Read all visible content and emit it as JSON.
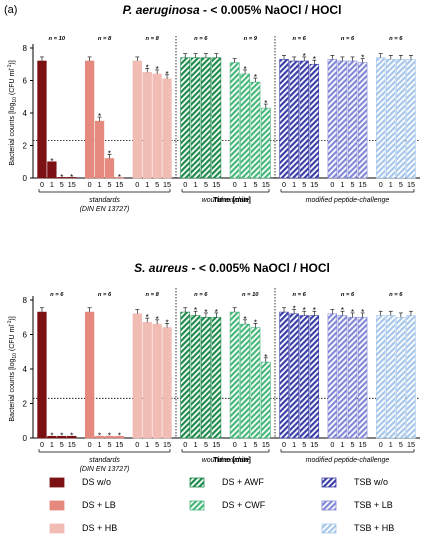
{
  "panel_label": "(a)",
  "chart_data": [
    {
      "type": "bar",
      "title": "P. aeruginosa - < 0.005% NaOCl / HOCl",
      "ylabel": "Bacterial counts [log10 (CFU ml-1)]",
      "xlabel": "Time [min]",
      "ylim": [
        0,
        8
      ],
      "yticks": [
        0,
        2,
        4,
        6,
        8
      ],
      "detection_limit": 2.3,
      "categories": [
        "0",
        "1",
        "5",
        "15"
      ],
      "groups": [
        {
          "name": "standards (DIN EN 13727)",
          "series": [
            {
              "name": "DS w/o",
              "n": "n = 10",
              "values": [
                7.2,
                1.0,
                0.0,
                0.0
              ],
              "sig": [
                "",
                "*",
                "*",
                "*"
              ]
            },
            {
              "name": "DS + LB",
              "n": "n = 8",
              "values": [
                7.2,
                3.5,
                1.2,
                0.0
              ],
              "sig": [
                "",
                "*",
                "*",
                "*"
              ]
            },
            {
              "name": "DS + HB",
              "n": "n = 8",
              "values": [
                7.2,
                6.5,
                6.4,
                6.1
              ],
              "sig": [
                "",
                "*",
                "*",
                "*"
              ]
            }
          ]
        },
        {
          "name": "wound exudate",
          "series": [
            {
              "name": "DS + AWF",
              "n": "n = 6",
              "values": [
                7.4,
                7.4,
                7.4,
                7.4
              ],
              "sig": [
                "",
                "",
                "",
                ""
              ]
            },
            {
              "name": "DS + CWF",
              "n": "n = 9",
              "values": [
                7.1,
                6.4,
                5.9,
                4.3
              ],
              "sig": [
                "",
                "*",
                "*",
                "*"
              ]
            }
          ]
        },
        {
          "name": "modified peptide-challenge",
          "series": [
            {
              "name": "TSB w/o",
              "n": "n = 6",
              "values": [
                7.3,
                7.2,
                7.2,
                7.0
              ],
              "sig": [
                "",
                "",
                "*",
                "*"
              ]
            },
            {
              "name": "TSB + LB",
              "n": "n = 6",
              "values": [
                7.3,
                7.2,
                7.2,
                7.1
              ],
              "sig": [
                "",
                "",
                "",
                "*"
              ]
            },
            {
              "name": "TSB + HB",
              "n": "n = 6",
              "values": [
                7.4,
                7.3,
                7.3,
                7.3
              ],
              "sig": [
                "",
                "",
                "",
                ""
              ]
            }
          ]
        }
      ]
    },
    {
      "type": "bar",
      "title": "S. aureus - < 0.005% NaOCl / HOCl",
      "ylabel": "Bacterial counts [log10 (CFU ml-1)]",
      "xlabel": "Time [min]",
      "ylim": [
        0,
        8
      ],
      "yticks": [
        0,
        2,
        4,
        6,
        8
      ],
      "detection_limit": 2.3,
      "categories": [
        "0",
        "1",
        "5",
        "15"
      ],
      "groups": [
        {
          "name": "standards (DIN EN 13727)",
          "series": [
            {
              "name": "DS w/o",
              "n": "n = 6",
              "values": [
                7.3,
                0.1,
                0.1,
                0.1
              ],
              "sig": [
                "",
                "*",
                "*",
                "*"
              ]
            },
            {
              "name": "DS + LB",
              "n": "n = 6",
              "values": [
                7.3,
                0.1,
                0.1,
                0.1
              ],
              "sig": [
                "",
                "*",
                "*",
                "*"
              ]
            },
            {
              "name": "DS + HB",
              "n": "n = 8",
              "values": [
                7.2,
                6.7,
                6.6,
                6.4
              ],
              "sig": [
                "",
                "*",
                "*",
                "*"
              ]
            }
          ]
        },
        {
          "name": "wound exudate",
          "series": [
            {
              "name": "DS + AWF",
              "n": "n = 6",
              "values": [
                7.3,
                7.1,
                7.0,
                7.0
              ],
              "sig": [
                "",
                "*",
                "*",
                "*"
              ]
            },
            {
              "name": "DS + CWF",
              "n": "n = 10",
              "values": [
                7.3,
                6.6,
                6.4,
                4.4
              ],
              "sig": [
                "",
                "*",
                "*",
                "*"
              ]
            }
          ]
        },
        {
          "name": "modified peptide-challenge",
          "series": [
            {
              "name": "TSB w/o",
              "n": "n = 6",
              "values": [
                7.3,
                7.2,
                7.1,
                7.1
              ],
              "sig": [
                "",
                "*",
                "*",
                "*"
              ]
            },
            {
              "name": "TSB + LB",
              "n": "n = 6",
              "values": [
                7.2,
                7.1,
                7.0,
                7.0
              ],
              "sig": [
                "",
                "*",
                "*",
                "*"
              ]
            },
            {
              "name": "TSB + HB",
              "n": "n = 6",
              "values": [
                7.1,
                7.1,
                7.0,
                7.1
              ],
              "sig": [
                "",
                "",
                "",
                ""
              ]
            }
          ]
        }
      ]
    }
  ],
  "legend": [
    {
      "label": "DS w/o",
      "color": "#7b1113",
      "pattern": "solid"
    },
    {
      "label": "DS + LB",
      "color": "#e5897e",
      "pattern": "solid"
    },
    {
      "label": "DS + HB",
      "color": "#f1bcb3",
      "pattern": "solid"
    },
    {
      "label": "DS + AWF",
      "color": "#1e8a4c",
      "pattern": "hatch"
    },
    {
      "label": "DS + CWF",
      "color": "#46b77a",
      "pattern": "hatch"
    },
    {
      "label": "TSB w/o",
      "color": "#3b3fa8",
      "pattern": "hatch"
    },
    {
      "label": "TSB + LB",
      "color": "#8288d6",
      "pattern": "hatch"
    },
    {
      "label": "TSB + HB",
      "color": "#a6c6ea",
      "pattern": "hatch"
    }
  ]
}
